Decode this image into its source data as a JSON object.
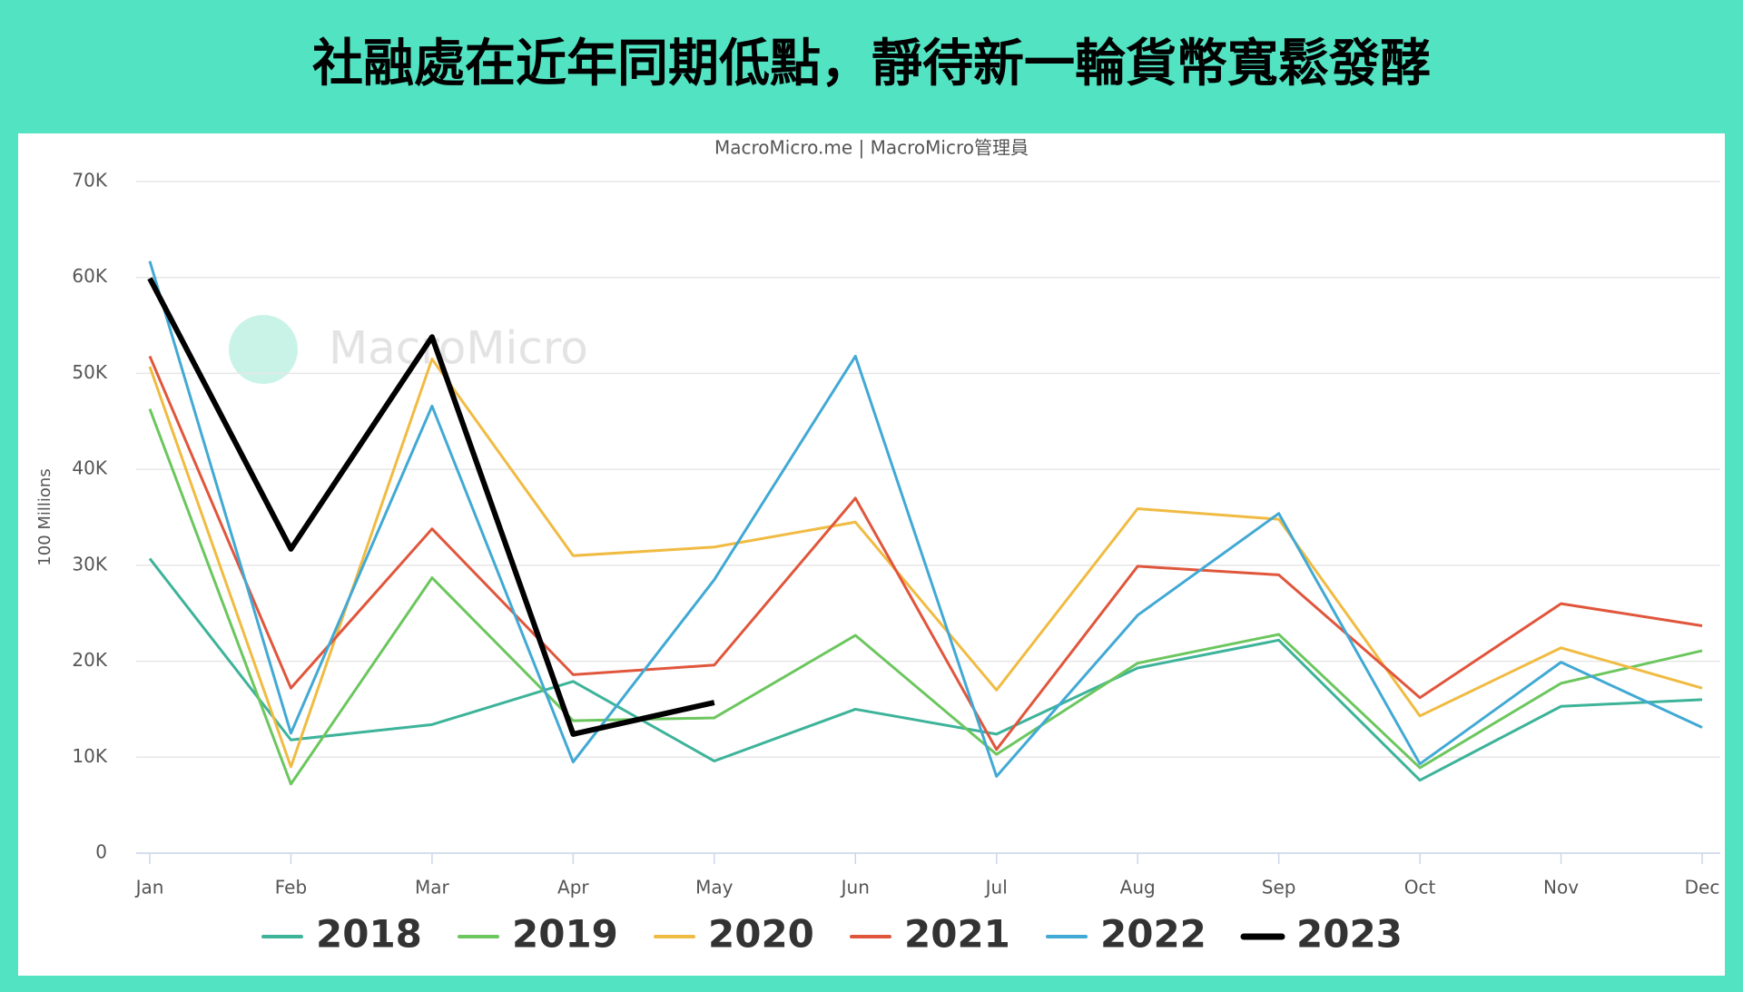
{
  "chart_data": {
    "type": "line",
    "title": "社融處在近年同期低點，靜待新一輪貨幣寬鬆發酵",
    "subtitle": "MacroMicro.me | MacroMicro管理員",
    "watermark": "MacroMicro",
    "y_label": "100 Millions",
    "categories": [
      "Jan",
      "Feb",
      "Mar",
      "Apr",
      "May",
      "Jun",
      "Jul",
      "Aug",
      "Sep",
      "Oct",
      "Nov",
      "Dec"
    ],
    "series": [
      {
        "name": "2018",
        "color": "#3db39a",
        "values": [
          30700,
          11800,
          13400,
          17900,
          9600,
          15000,
          12400,
          19300,
          22200,
          7600,
          15300,
          16000
        ]
      },
      {
        "name": "2019",
        "color": "#6cc65e",
        "values": [
          46300,
          7200,
          28700,
          13800,
          14100,
          22700,
          10300,
          19800,
          22800,
          8900,
          17700,
          21100
        ]
      },
      {
        "name": "2020",
        "color": "#f0bb42",
        "values": [
          50700,
          9000,
          51500,
          31000,
          31900,
          34500,
          17000,
          35900,
          34800,
          14300,
          21400,
          17200
        ]
      },
      {
        "name": "2021",
        "color": "#e0563c",
        "values": [
          51800,
          17200,
          33800,
          18600,
          19600,
          37000,
          10800,
          29900,
          29000,
          16200,
          26000,
          23700
        ]
      },
      {
        "name": "2022",
        "color": "#41a9d4",
        "values": [
          61700,
          12500,
          46600,
          9500,
          28500,
          51800,
          8000,
          24800,
          35400,
          9300,
          19900,
          13100
        ]
      },
      {
        "name": "2023",
        "color": "#000000",
        "values": [
          59900,
          31700,
          53800,
          12400,
          15700,
          null,
          null,
          null,
          null,
          null,
          null,
          null
        ]
      }
    ],
    "ylim": [
      0,
      70000
    ],
    "yticks": [
      0,
      {
        "value": 10000,
        "label": "10K"
      },
      {
        "value": 20000,
        "label": "20K"
      },
      {
        "value": 30000,
        "label": "30K"
      },
      {
        "value": 40000,
        "label": "40K"
      },
      {
        "value": 50000,
        "label": "50K"
      },
      {
        "value": 60000,
        "label": "60K"
      },
      {
        "value": 70000,
        "label": "70K"
      }
    ],
    "grid": true
  }
}
